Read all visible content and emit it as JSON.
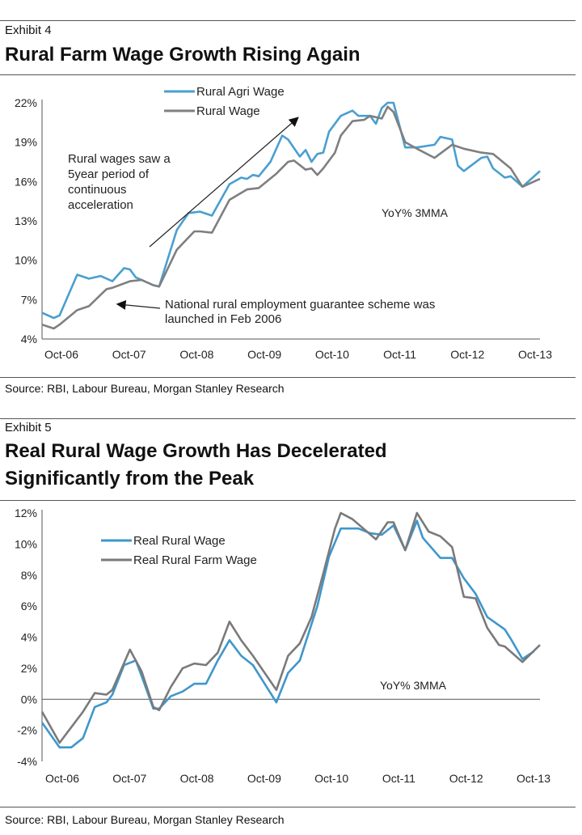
{
  "exhibit4": {
    "label": "Exhibit 4",
    "title": "Rural Farm Wage Growth Rising Again",
    "source": "Source: RBI, Labour Bureau, Morgan Stanley Research"
  },
  "exhibit5": {
    "label": "Exhibit 5",
    "title_line1": "Real Rural Wage Growth Has Decelerated",
    "title_line2": "Significantly from the Peak",
    "source": "Source: RBI, Labour Bureau, Morgan Stanley Research"
  },
  "chart_data": [
    {
      "type": "line",
      "title": "Rural Farm Wage Growth Rising Again",
      "ylim": [
        4,
        22
      ],
      "yticks": [
        "4%",
        "7%",
        "10%",
        "13%",
        "16%",
        "19%",
        "22%"
      ],
      "ytick_values": [
        4,
        7,
        10,
        13,
        16,
        19,
        22
      ],
      "xticks": [
        "Oct-06",
        "Oct-07",
        "Oct-08",
        "Oct-09",
        "Oct-10",
        "Oct-11",
        "Oct-12",
        "Oct-13"
      ],
      "xlim": [
        "2006-10",
        "2013-11"
      ],
      "grid": false,
      "legend": "top-left",
      "annotations": {
        "note": "YoY% 3MMA",
        "acceleration": [
          "Rural wages saw a",
          "5year period of",
          "continuous",
          "acceleration"
        ],
        "scheme": [
          "National rural employment guarantee scheme was",
          "launched in Feb 2006"
        ]
      },
      "series": [
        {
          "name": "Rural Agri Wage",
          "color": "#4a9fd0",
          "x": [
            "2006-10",
            "2006-12",
            "2007-01",
            "2007-04",
            "2007-06",
            "2007-08",
            "2007-10",
            "2007-12",
            "2008-01",
            "2008-02",
            "2008-05",
            "2008-06",
            "2008-09",
            "2008-11",
            "2009-01",
            "2009-03",
            "2009-06",
            "2009-08",
            "2009-09",
            "2009-10",
            "2009-11",
            "2010-01",
            "2010-03",
            "2010-04",
            "2010-06",
            "2010-07",
            "2010-08",
            "2010-09",
            "2010-10",
            "2010-11",
            "2011-01",
            "2011-03",
            "2011-04",
            "2011-06",
            "2011-07",
            "2011-08",
            "2011-09",
            "2011-10",
            "2011-12",
            "2012-02",
            "2012-05",
            "2012-06",
            "2012-08",
            "2012-09",
            "2012-10",
            "2013-01",
            "2013-02",
            "2013-03",
            "2013-05",
            "2013-06",
            "2013-08",
            "2013-11"
          ],
          "values": [
            6.0,
            5.6,
            5.8,
            8.9,
            8.6,
            8.8,
            8.4,
            9.4,
            9.3,
            8.7,
            8.1,
            8.0,
            12.3,
            13.6,
            13.7,
            13.4,
            15.8,
            16.3,
            16.2,
            16.5,
            16.4,
            17.5,
            19.5,
            19.2,
            17.9,
            18.4,
            17.5,
            18.1,
            18.2,
            19.8,
            21.0,
            21.4,
            21.0,
            21.0,
            20.4,
            21.6,
            22.0,
            22.0,
            18.6,
            18.6,
            18.8,
            19.4,
            19.2,
            17.2,
            16.8,
            17.8,
            17.9,
            17.0,
            16.3,
            16.4,
            15.6,
            16.8
          ]
        },
        {
          "name": "Rural Wage",
          "color": "#7f7f7f",
          "x": [
            "2006-10",
            "2006-12",
            "2007-01",
            "2007-04",
            "2007-06",
            "2007-09",
            "2007-10",
            "2008-01",
            "2008-03",
            "2008-05",
            "2008-06",
            "2008-09",
            "2008-12",
            "2009-01",
            "2009-03",
            "2009-06",
            "2009-09",
            "2009-11",
            "2010-02",
            "2010-04",
            "2010-05",
            "2010-07",
            "2010-08",
            "2010-09",
            "2010-10",
            "2010-12",
            "2011-01",
            "2011-03",
            "2011-05",
            "2011-06",
            "2011-08",
            "2011-09",
            "2011-10",
            "2011-12",
            "2012-02",
            "2012-05",
            "2012-08",
            "2012-10",
            "2013-01",
            "2013-03",
            "2013-06",
            "2013-08",
            "2013-11"
          ],
          "values": [
            5.1,
            4.8,
            5.1,
            6.2,
            6.5,
            7.8,
            7.9,
            8.4,
            8.5,
            8.1,
            8.0,
            10.8,
            12.2,
            12.2,
            12.1,
            14.6,
            15.4,
            15.5,
            16.6,
            17.5,
            17.6,
            16.9,
            17.0,
            16.5,
            17.0,
            18.2,
            19.5,
            20.6,
            20.7,
            21.0,
            20.8,
            21.7,
            21.3,
            19.0,
            18.5,
            17.8,
            18.8,
            18.5,
            18.2,
            18.1,
            17.0,
            15.6,
            16.2
          ]
        }
      ]
    },
    {
      "type": "line",
      "title": "Real Rural Wage Growth Has Decelerated Significantly from the Peak",
      "ylim": [
        -4,
        12
      ],
      "yticks": [
        "-4%",
        "-2%",
        "0%",
        "2%",
        "4%",
        "6%",
        "8%",
        "10%",
        "12%"
      ],
      "ytick_values": [
        -4,
        -2,
        0,
        2,
        4,
        6,
        8,
        10,
        12
      ],
      "xticks": [
        "Oct-06",
        "Oct-07",
        "Oct-08",
        "Oct-09",
        "Oct-10",
        "Oct-11",
        "Oct-12",
        "Oct-13"
      ],
      "xlim": [
        "2006-10",
        "2013-11"
      ],
      "grid": false,
      "legend": "top-left",
      "annotations": {
        "note": "YoY% 3MMA"
      },
      "series": [
        {
          "name": "Real Rural Wage",
          "color": "#3f97cc",
          "x": [
            "2006-10",
            "2007-01",
            "2007-03",
            "2007-05",
            "2007-07",
            "2007-09",
            "2007-10",
            "2007-12",
            "2008-02",
            "2008-03",
            "2008-05",
            "2008-06",
            "2008-08",
            "2008-10",
            "2008-12",
            "2009-02",
            "2009-04",
            "2009-06",
            "2009-08",
            "2009-10",
            "2009-12",
            "2010-02",
            "2010-04",
            "2010-06",
            "2010-09",
            "2010-11",
            "2011-01",
            "2011-04",
            "2011-06",
            "2011-08",
            "2011-10",
            "2011-12",
            "2012-02",
            "2012-03",
            "2012-06",
            "2012-08",
            "2012-10",
            "2012-12",
            "2013-02",
            "2013-05",
            "2013-06",
            "2013-08",
            "2013-10"
          ],
          "values": [
            -1.5,
            -3.1,
            -3.1,
            -2.5,
            -0.5,
            -0.2,
            0.3,
            2.2,
            2.5,
            1.5,
            -0.6,
            -0.6,
            0.2,
            0.5,
            1.0,
            1.0,
            2.5,
            3.8,
            2.8,
            2.2,
            1.0,
            -0.2,
            1.7,
            2.5,
            6.0,
            9.2,
            11.0,
            11.0,
            10.7,
            10.6,
            11.2,
            9.6,
            11.5,
            10.4,
            9.1,
            9.1,
            7.8,
            6.8,
            5.3,
            4.5,
            3.9,
            2.6,
            3.1
          ]
        },
        {
          "name": "Real Rural Farm Wage",
          "color": "#7a7a7a",
          "x": [
            "2006-10",
            "2007-01",
            "2007-05",
            "2007-07",
            "2007-09",
            "2007-10",
            "2008-01",
            "2008-03",
            "2008-05",
            "2008-06",
            "2008-08",
            "2008-10",
            "2008-12",
            "2009-02",
            "2009-04",
            "2009-06",
            "2009-08",
            "2009-10",
            "2010-02",
            "2010-04",
            "2010-06",
            "2010-08",
            "2010-10",
            "2010-12",
            "2011-01",
            "2011-03",
            "2011-07",
            "2011-09",
            "2011-10",
            "2011-12",
            "2012-02",
            "2012-04",
            "2012-06",
            "2012-08",
            "2012-10",
            "2012-12",
            "2013-02",
            "2013-04",
            "2013-05",
            "2013-08",
            "2013-11"
          ],
          "values": [
            -0.8,
            -2.8,
            -0.8,
            0.4,
            0.3,
            0.6,
            3.2,
            1.8,
            -0.5,
            -0.7,
            0.8,
            2.0,
            2.3,
            2.2,
            3.0,
            5.0,
            3.8,
            2.8,
            0.6,
            2.8,
            3.6,
            5.3,
            8.1,
            11.0,
            12.0,
            11.6,
            10.3,
            11.4,
            11.4,
            9.6,
            12.0,
            10.8,
            10.5,
            9.8,
            6.6,
            6.5,
            4.6,
            3.5,
            3.4,
            2.4,
            3.5
          ]
        }
      ]
    }
  ]
}
